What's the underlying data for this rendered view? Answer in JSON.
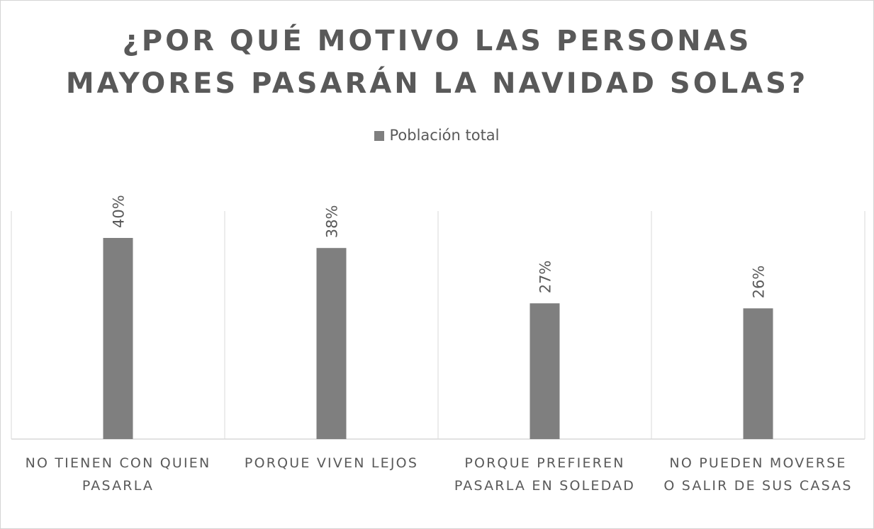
{
  "chart_data": {
    "type": "bar",
    "title_lines": [
      "¿POR QUÉ MOTIVO LAS PERSONAS",
      "MAYORES PASARÁN LA NAVIDAD SOLAS?"
    ],
    "categories": [
      [
        "NO TIENEN CON QUIEN",
        "PASARLA"
      ],
      [
        "PORQUE VIVEN LEJOS"
      ],
      [
        "PORQUE PREFIEREN",
        "PASARLA EN SOLEDAD"
      ],
      [
        "NO PUEDEN MOVERSE",
        "O SALIR DE SUS CASAS"
      ]
    ],
    "series": [
      {
        "name": "Población total",
        "values": [
          40,
          38,
          27,
          26
        ],
        "labels": [
          "40%",
          "38%",
          "27%",
          "26%"
        ],
        "color": "#7f7f7f"
      }
    ],
    "ylim": [
      0,
      45
    ],
    "xlabel": "",
    "ylabel": "",
    "legend_position": "top",
    "gridlines": "vertical category separators"
  }
}
